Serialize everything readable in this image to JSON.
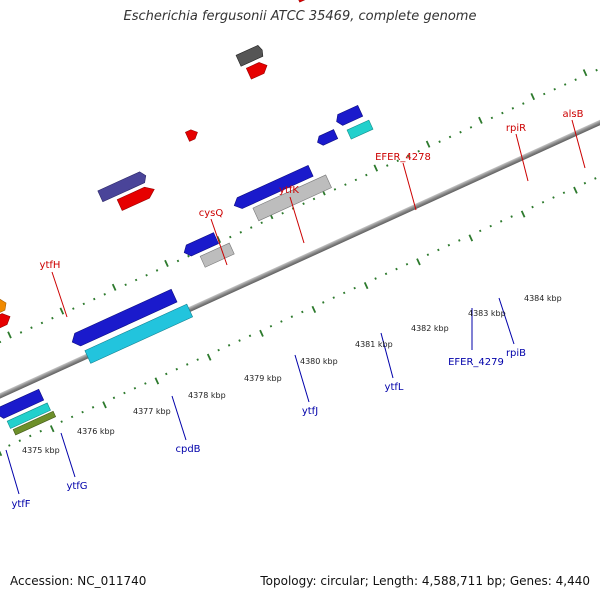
{
  "title": "Escherichia fergusonii ATCC 35469, complete genome",
  "footer": {
    "accession": "Accession: NC_011740",
    "summary": "Topology: circular; Length: 4,588,711 bp; Genes: 4,440"
  },
  "scale_labels": [
    "4375 kbp",
    "4376 kbp",
    "4377 kbp",
    "4378 kbp",
    "4379 kbp",
    "4380 kbp",
    "4381 kbp",
    "4382 kbp",
    "4383 kbp",
    "4384 kbp"
  ],
  "gene_labels_forward": [
    "ytfH",
    "cysQ",
    "ytfK",
    "EFER_4278",
    "rpiR",
    "alsB"
  ],
  "gene_labels_reverse": [
    "ytfF",
    "ytfG",
    "cpdB",
    "ytfJ",
    "ytfL",
    "EFER_4279",
    "rpiB"
  ],
  "colors": {
    "backbone": "#8a8a8a",
    "tick": "#2d7a2d",
    "forward_label": "#cc0000",
    "reverse_label": "#0000aa",
    "blue": "#1a1acc",
    "cyan": "#22c4dd",
    "red": "#e60000",
    "orange": "#f08a00",
    "gray": "#bdbdbd",
    "darkgray": "#555555",
    "purple": "#4a4499",
    "teal": "#22d0cc",
    "olive": "#6d8f2a"
  }
}
